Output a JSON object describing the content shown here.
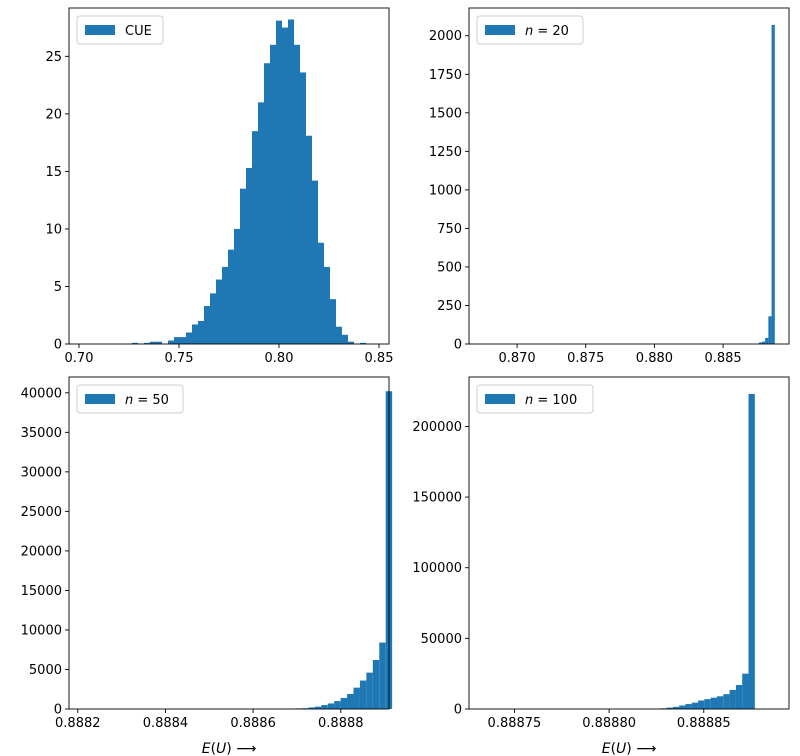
{
  "chart_data": [
    {
      "type": "histogram",
      "legend": "CUE",
      "legend_placement": "upper-left",
      "color": "#1f77b4",
      "xlabel": "",
      "xlim": [
        0.695,
        0.855
      ],
      "ylim": [
        0,
        29.2
      ],
      "xticks": [
        "0.70",
        "0.75",
        "0.80",
        "0.85"
      ],
      "yticks": [
        "0",
        "5",
        "10",
        "15",
        "20",
        "25"
      ],
      "bins": {
        "start": 0.7025,
        "width": 0.003,
        "counts": [
          0,
          0,
          0,
          0,
          0,
          0,
          0,
          0,
          0.1,
          0,
          0.1,
          0.2,
          0.2,
          0,
          0.3,
          0.6,
          0.6,
          1.0,
          1.7,
          2.0,
          3.3,
          4.4,
          5.6,
          6.7,
          8.2,
          10.0,
          13.5,
          15.3,
          18.5,
          21.0,
          24.4,
          26.0,
          28.1,
          27.5,
          28.2,
          26.0,
          23.6,
          18.1,
          14.2,
          8.8,
          6.7,
          3.9,
          1.5,
          0.8,
          0.2,
          0,
          0.1,
          0
        ]
      }
    },
    {
      "type": "histogram",
      "legend": "n = 20",
      "legend_placement": "upper-left",
      "color": "#1f77b4",
      "xlabel": "",
      "xlim": [
        0.8665,
        0.8898
      ],
      "ylim": [
        0,
        2180
      ],
      "xticks": [
        "0.870",
        "0.875",
        "0.880",
        "0.885"
      ],
      "yticks": [
        "0",
        "250",
        "500",
        "750",
        "1000",
        "1250",
        "1500",
        "1750",
        "2000"
      ],
      "bins": {
        "start": 0.8876,
        "width": 0.000233,
        "counts": [
          10,
          15,
          40,
          180,
          2070
        ]
      }
    },
    {
      "type": "histogram",
      "legend": "n = 50",
      "legend_placement": "upper-left",
      "color": "#1f77b4",
      "xlabel": "E(U) ⟶",
      "xlim": [
        0.88818,
        0.88891
      ],
      "ylim": [
        0,
        42000
      ],
      "xticks": [
        "0.8882",
        "0.8884",
        "0.8886",
        "0.8888"
      ],
      "yticks": [
        "0",
        "5000",
        "10000",
        "15000",
        "20000",
        "25000",
        "30000",
        "35000",
        "40000"
      ],
      "bins": {
        "start": 0.888682,
        "width": 1.47e-05,
        "counts": [
          60,
          80,
          100,
          200,
          300,
          500,
          700,
          1000,
          1400,
          1900,
          2700,
          3600,
          4600,
          6200,
          8400,
          40200
        ]
      }
    },
    {
      "type": "histogram",
      "legend": "n = 100",
      "legend_placement": "upper-left",
      "color": "#1f77b4",
      "xlabel": "E(U) ⟶",
      "xlim": [
        0.888726,
        0.888895
      ],
      "ylim": [
        0,
        235000
      ],
      "xticks": [
        "0.88875",
        "0.88880",
        "0.88885"
      ],
      "yticks": [
        "0",
        "50000",
        "100000",
        "150000",
        "200000"
      ],
      "bins": {
        "start": 0.888827,
        "width": 3.33e-06,
        "counts": [
          500,
          1000,
          1500,
          2500,
          3500,
          4500,
          6000,
          7000,
          8000,
          9000,
          10500,
          13500,
          17000,
          25000,
          223000
        ]
      }
    }
  ]
}
